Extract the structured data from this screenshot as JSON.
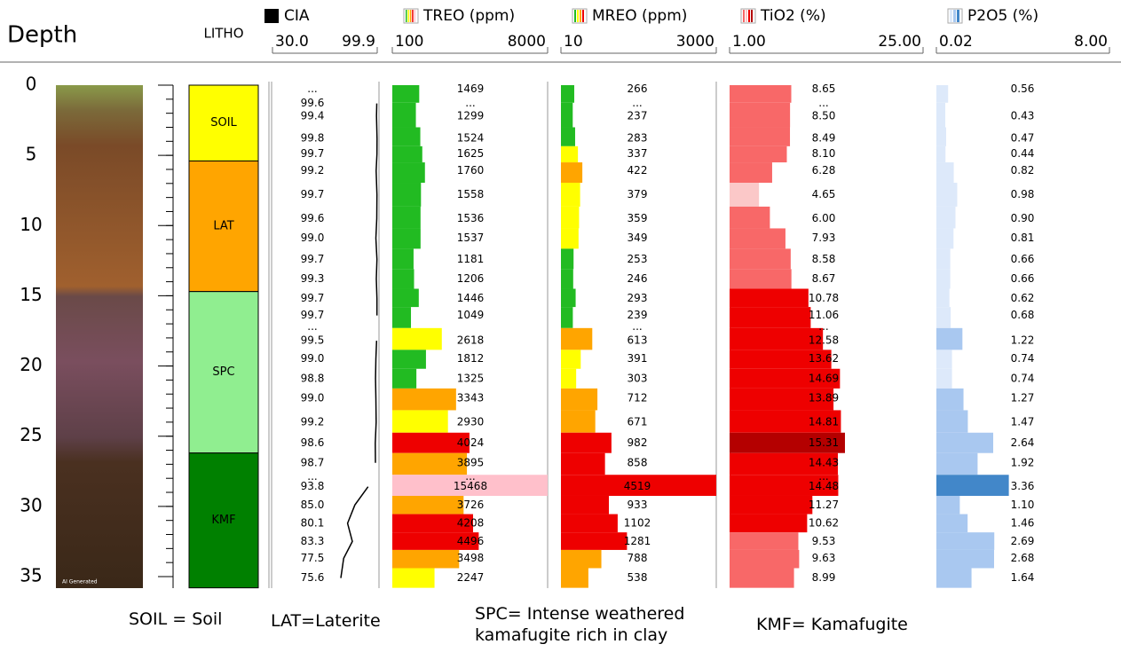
{
  "chart_data": {
    "type": "log",
    "ylabel": "Depth",
    "ylim": [
      0,
      35
    ],
    "yticks": [
      0,
      5,
      10,
      15,
      20,
      25,
      30,
      35
    ],
    "depths": [
      0.3,
      1.3,
      2.2,
      3.8,
      4.9,
      6.1,
      7.8,
      9.5,
      10.9,
      12.4,
      13.8,
      15.2,
      16.4,
      17.2,
      18.2,
      19.5,
      20.9,
      22.3,
      24.0,
      25.5,
      26.9,
      27.9,
      28.6,
      29.9,
      31.2,
      32.5,
      33.7,
      35.1
    ],
    "photo_label": "AI Generated",
    "litho": {
      "title": "LITHO",
      "layers": [
        {
          "label": "SOIL",
          "top": 0,
          "bottom": 5.4,
          "color": "#ffff00"
        },
        {
          "label": "LAT",
          "top": 5.4,
          "bottom": 14.7,
          "color": "#ffa500"
        },
        {
          "label": "SPC",
          "top": 14.7,
          "bottom": 26.2,
          "color": "#90ee90"
        },
        {
          "label": "KMF",
          "top": 26.2,
          "bottom": 35.8,
          "color": "#008000"
        }
      ]
    },
    "tracks": [
      {
        "type": "line",
        "name": "CIA",
        "color": "#000000",
        "xlim": [
          30,
          99.9
        ],
        "xticks": [
          {
            "value": 30,
            "label": "30.0"
          },
          {
            "value": 99.9,
            "label": "99.9"
          }
        ],
        "values": [
          null,
          99.6,
          99.4,
          99.8,
          99.7,
          99.2,
          99.7,
          99.6,
          99.0,
          99.7,
          99.3,
          99.7,
          99.7,
          null,
          99.5,
          99.0,
          98.8,
          99.0,
          99.2,
          98.6,
          98.7,
          null,
          93.8,
          85.0,
          80.1,
          83.3,
          77.5,
          75.6
        ],
        "value_labels": [
          "...",
          "99.6",
          "99.4",
          "99.8",
          "99.7",
          "99.2",
          "99.7",
          "99.6",
          "99.0",
          "99.7",
          "99.3",
          "99.7",
          "99.7",
          "...",
          "99.5",
          "99.0",
          "98.8",
          "99.0",
          "99.2",
          "98.6",
          "98.7",
          "...",
          "93.8",
          "85.0",
          "80.1",
          "83.3",
          "77.5",
          "75.6"
        ]
      },
      {
        "type": "bar",
        "name": "TREO (ppm)",
        "xlim": [
          100,
          8000
        ],
        "xticks": [
          100,
          8000
        ],
        "values": [
          1469,
          null,
          1299,
          1524,
          1625,
          1760,
          1558,
          1536,
          1537,
          1181,
          1206,
          1446,
          1049,
          null,
          2618,
          1812,
          1325,
          3343,
          2930,
          4024,
          3895,
          null,
          15468,
          3726,
          4208,
          4496,
          3498,
          2247
        ],
        "value_labels": [
          "1469",
          "...",
          "1299",
          "1524",
          "1625",
          "1760",
          "1558",
          "1536",
          "1537",
          "1181",
          "1206",
          "1446",
          "1049",
          null,
          "2618",
          "1812",
          "1325",
          "3343",
          "2930",
          "4024",
          "3895",
          "...",
          "15468",
          "3726",
          "4208",
          "4496",
          "3498",
          "2247"
        ],
        "colors": [
          "#22bb22",
          null,
          "#22bb22",
          "#22bb22",
          "#22bb22",
          "#22bb22",
          "#22bb22",
          "#22bb22",
          "#22bb22",
          "#22bb22",
          "#22bb22",
          "#22bb22",
          "#22bb22",
          null,
          "#ffff00",
          "#22bb22",
          "#22bb22",
          "#ffa500",
          "#ffff00",
          "#ee0000",
          "#ffa500",
          null,
          "#ffc0cb",
          "#ffa500",
          "#ee0000",
          "#ee0000",
          "#ffa500",
          "#ffff00"
        ]
      },
      {
        "type": "bar",
        "name": "MREO (ppm)",
        "xlim": [
          10,
          3000
        ],
        "xticks": [
          10,
          3000
        ],
        "values": [
          266,
          null,
          237,
          283,
          337,
          422,
          379,
          359,
          349,
          253,
          246,
          293,
          239,
          null,
          613,
          391,
          303,
          712,
          671,
          982,
          858,
          null,
          4519,
          933,
          1102,
          1281,
          788,
          538
        ],
        "value_labels": [
          "266",
          "...",
          "237",
          "283",
          "337",
          "422",
          "379",
          "359",
          "349",
          "253",
          "246",
          "293",
          "239",
          "...",
          "613",
          "391",
          "303",
          "712",
          "671",
          "982",
          "858",
          null,
          "4519",
          "933",
          "1102",
          "1281",
          "788",
          "538"
        ],
        "colors": [
          "#22bb22",
          null,
          "#22bb22",
          "#22bb22",
          "#ffff00",
          "#ffa500",
          "#ffff00",
          "#ffff00",
          "#ffff00",
          "#22bb22",
          "#22bb22",
          "#22bb22",
          "#22bb22",
          null,
          "#ffa500",
          "#ffff00",
          "#ffff00",
          "#ffa500",
          "#ffa500",
          "#ee0000",
          "#ee0000",
          null,
          "#ee0000",
          "#ee0000",
          "#ee0000",
          "#ee0000",
          "#ffa500",
          "#ffa500"
        ]
      },
      {
        "type": "bar",
        "name": "TiO2 (%)",
        "xlim": [
          1,
          25
        ],
        "xticks": [
          {
            "value": 1,
            "label": "1.00"
          },
          {
            "value": 25,
            "label": "25.00"
          }
        ],
        "values": [
          8.65,
          null,
          8.5,
          8.49,
          8.1,
          6.28,
          4.65,
          6,
          7.93,
          8.58,
          8.67,
          10.78,
          11.06,
          null,
          12.58,
          13.62,
          14.69,
          13.89,
          14.81,
          15.31,
          14.43,
          null,
          14.48,
          11.27,
          10.62,
          9.53,
          9.63,
          8.99
        ],
        "value_labels": [
          "8.65",
          "...",
          "8.50",
          "8.49",
          "8.10",
          "6.28",
          "4.65",
          "6.00",
          "7.93",
          "8.58",
          "8.67",
          "10.78",
          "11.06",
          "...",
          "12.58",
          "13.62",
          "14.69",
          "13.89",
          "14.81",
          "15.31",
          "14.43",
          "...",
          "14.48",
          "11.27",
          "10.62",
          "9.53",
          "9.63",
          "8.99"
        ],
        "colors": [
          "#f86868",
          null,
          "#f86868",
          "#f86868",
          "#f86868",
          "#f86868",
          "#fbc8c8",
          "#f86868",
          "#f86868",
          "#f86868",
          "#f86868",
          "#ee0000",
          "#ee0000",
          null,
          "#ee0000",
          "#ee0000",
          "#ee0000",
          "#ee0000",
          "#ee0000",
          "#b40000",
          "#ee0000",
          null,
          "#ee0000",
          "#ee0000",
          "#ee0000",
          "#f86868",
          "#f86868",
          "#f86868"
        ]
      },
      {
        "type": "bar",
        "name": "P2O5 (%)",
        "xlim": [
          0.02,
          8
        ],
        "xticks": [
          0.02,
          {
            "value": 8,
            "label": "8.00"
          }
        ],
        "values": [
          0.56,
          null,
          0.43,
          0.47,
          0.44,
          0.82,
          0.98,
          0.9,
          0.81,
          0.66,
          0.66,
          0.62,
          0.68,
          null,
          1.22,
          0.74,
          0.74,
          1.27,
          1.47,
          2.64,
          1.92,
          null,
          3.36,
          1.1,
          1.46,
          2.69,
          2.68,
          1.64
        ],
        "value_labels": [
          "0.56",
          null,
          "0.43",
          "0.47",
          "0.44",
          "0.82",
          "0.98",
          "0.90",
          "0.81",
          "0.66",
          "0.66",
          "0.62",
          "0.68",
          null,
          "1.22",
          "0.74",
          "0.74",
          "1.27",
          "1.47",
          "2.64",
          "1.92",
          null,
          "3.36",
          "1.10",
          "1.46",
          "2.69",
          "2.68",
          "1.64"
        ],
        "colors": [
          "#dde9fa",
          null,
          "#dde9fa",
          "#dde9fa",
          "#dde9fa",
          "#dde9fa",
          "#dde9fa",
          "#dde9fa",
          "#dde9fa",
          "#dde9fa",
          "#dde9fa",
          "#dde9fa",
          "#dde9fa",
          null,
          "#a9c8f0",
          "#dde9fa",
          "#dde9fa",
          "#a9c8f0",
          "#a9c8f0",
          "#a9c8f0",
          "#a9c8f0",
          null,
          "#4287c9",
          "#a9c8f0",
          "#a9c8f0",
          "#a9c8f0",
          "#a9c8f0",
          "#a9c8f0"
        ]
      }
    ],
    "notes": [
      "SOIL = Soil",
      "LAT=Laterite",
      "SPC= Intense weathered kamafugite rich in clay",
      "KMF= Kamafugite"
    ]
  }
}
